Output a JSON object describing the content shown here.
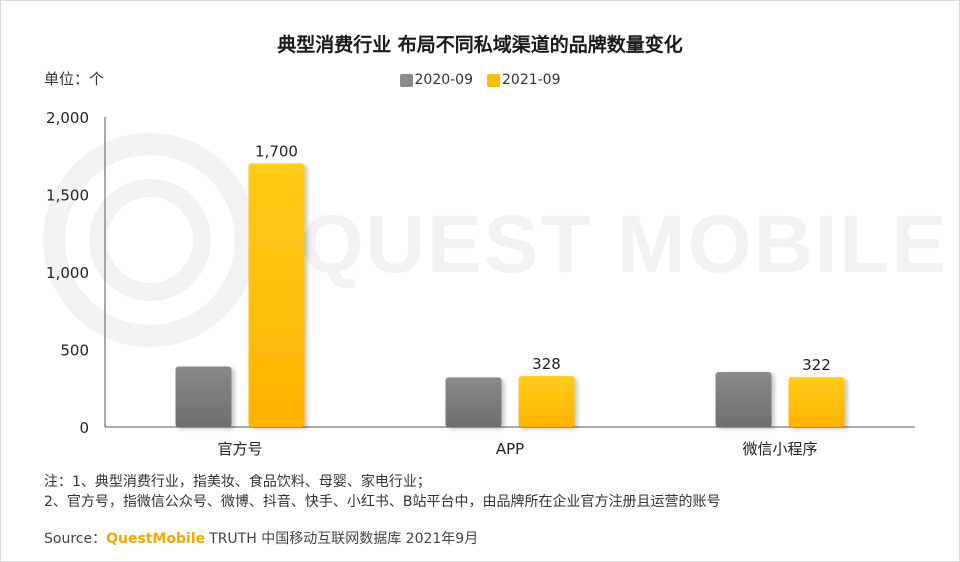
{
  "title": "典型消费行业 布局不同私域渠道的品牌数量变化",
  "unit_label": "单位：个",
  "watermark_text": "QUEST MOBILE",
  "notes": [
    "注：1、典型消费行业，指美妆、食品饮料、母婴、家电行业；",
    "2、官方号，指微信公众号、微博、抖音、快手、小红书、B站平台中，由品牌所在企业官方注册且运营的账号"
  ],
  "source": {
    "label": "Source：",
    "brand": "QuestMobile",
    "rest": "TRUTH 中国移动互联网数据库 2021年9月"
  },
  "colors": {
    "series_2020": "#8c8c8c",
    "series_2021": "#ffc000",
    "watermark": "#f1f1f1",
    "axis": "#555555",
    "brand": "#f5a800"
  },
  "chart_data": {
    "type": "bar",
    "categories": [
      "官方号",
      "APP",
      "微信小程序"
    ],
    "series": [
      {
        "name": "2020-09",
        "values": [
          390,
          320,
          355
        ],
        "show_labels": false
      },
      {
        "name": "2021-09",
        "values": [
          1700,
          328,
          322
        ],
        "show_labels": true
      }
    ],
    "y_ticks": [
      "0",
      "500",
      "1,000",
      "1,500",
      "2,000"
    ],
    "y_tick_values": [
      0,
      500,
      1000,
      1500,
      2000
    ],
    "ylim": [
      0,
      2000
    ],
    "grid": false,
    "legend_position": "top-center"
  }
}
